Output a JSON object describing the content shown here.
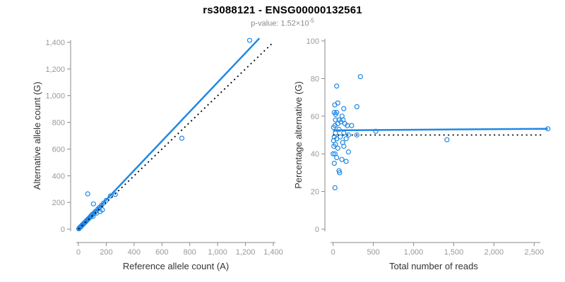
{
  "header": {
    "title": "rs3088121 - ENSG00000132561",
    "subtitle_prefix": "p-value: 1.52×10",
    "subtitle_exponent": "-5"
  },
  "colors": {
    "point": "#1E88E5",
    "fit_line": "#1E88E5",
    "reference_line": "#000000",
    "axis_line": "#888888",
    "tick_label": "#999999",
    "axis_title": "#333333",
    "title": "#000000",
    "subtitle": "#8a8a8a"
  },
  "chart_data": [
    {
      "type": "scatter",
      "name": "allele-count-scatter",
      "xlabel": "Reference allele count (A)",
      "ylabel": "Alternative allele count (G)",
      "xlim": [
        0,
        1400
      ],
      "ylim": [
        0,
        1400
      ],
      "xticks": {
        "values": [
          0,
          200,
          400,
          600,
          800,
          1000,
          1200,
          1400
        ],
        "labels": [
          "0",
          "200",
          "400",
          "600",
          "800",
          "1,000",
          "1,200",
          "1,400"
        ]
      },
      "yticks": {
        "values": [
          0,
          200,
          400,
          600,
          800,
          1000,
          1200,
          1400
        ],
        "labels": [
          "0",
          "200",
          "400",
          "600",
          "800",
          "1,000",
          "1,200",
          "1,400"
        ]
      },
      "points": [
        [
          3,
          3
        ],
        [
          4,
          5
        ],
        [
          6,
          6
        ],
        [
          7,
          8
        ],
        [
          9,
          10
        ],
        [
          10,
          12
        ],
        [
          12,
          13
        ],
        [
          13,
          15
        ],
        [
          15,
          16
        ],
        [
          16,
          18
        ],
        [
          18,
          20
        ],
        [
          20,
          21
        ],
        [
          22,
          24
        ],
        [
          24,
          26
        ],
        [
          26,
          28
        ],
        [
          28,
          31
        ],
        [
          30,
          33
        ],
        [
          32,
          35
        ],
        [
          35,
          38
        ],
        [
          38,
          41
        ],
        [
          40,
          44
        ],
        [
          44,
          48
        ],
        [
          48,
          52
        ],
        [
          52,
          56
        ],
        [
          56,
          60
        ],
        [
          60,
          65
        ],
        [
          65,
          70
        ],
        [
          70,
          76
        ],
        [
          75,
          80
        ],
        [
          80,
          87
        ],
        [
          85,
          90
        ],
        [
          90,
          98
        ],
        [
          95,
          102
        ],
        [
          100,
          110
        ],
        [
          105,
          95
        ],
        [
          110,
          118
        ],
        [
          118,
          126
        ],
        [
          125,
          134
        ],
        [
          130,
          120
        ],
        [
          140,
          150
        ],
        [
          150,
          162
        ],
        [
          156,
          132
        ],
        [
          165,
          178
        ],
        [
          172,
          144
        ],
        [
          180,
          195
        ],
        [
          200,
          215
        ],
        [
          230,
          248
        ],
        [
          265,
          260
        ],
        [
          67,
          264
        ],
        [
          108,
          189
        ],
        [
          743,
          681
        ],
        [
          1230,
          1415
        ]
      ],
      "lines": [
        {
          "name": "regression-line",
          "style": "solid",
          "color": "#1E88E5",
          "x1": 0,
          "y1": 0,
          "x2": 1300,
          "y2": 1430,
          "width": 2.5
        },
        {
          "name": "identity-line",
          "style": "dotted",
          "color": "#000000",
          "x1": 0,
          "y1": 0,
          "x2": 1400,
          "y2": 1400,
          "width": 1.8
        }
      ]
    },
    {
      "type": "scatter",
      "name": "percentage-scatter",
      "xlabel": "Total number of reads",
      "ylabel": "Percentage alternative (G)",
      "xlim": [
        0,
        2500
      ],
      "ylim": [
        0,
        100
      ],
      "xticks": {
        "values": [
          0,
          500,
          1000,
          1500,
          2000,
          2500
        ],
        "labels": [
          "0",
          "500",
          "1,000",
          "1,500",
          "2,000",
          "2,500"
        ]
      },
      "yticks": {
        "values": [
          0,
          20,
          40,
          60,
          80,
          100
        ],
        "labels": [
          "0",
          "20",
          "40",
          "60",
          "80",
          "100"
        ]
      },
      "points": [
        [
          339,
          81
        ],
        [
          44,
          76
        ],
        [
          20,
          66
        ],
        [
          58,
          67
        ],
        [
          295,
          65
        ],
        [
          133,
          64
        ],
        [
          14,
          62
        ],
        [
          44,
          62
        ],
        [
          30,
          61
        ],
        [
          111,
          60
        ],
        [
          29,
          58
        ],
        [
          73,
          58
        ],
        [
          124,
          58
        ],
        [
          97,
          57
        ],
        [
          58,
          56
        ],
        [
          147,
          56
        ],
        [
          23,
          55
        ],
        [
          177,
          55
        ],
        [
          230,
          55
        ],
        [
          5,
          54
        ],
        [
          73,
          53
        ],
        [
          531,
          52
        ],
        [
          29,
          51
        ],
        [
          133,
          51
        ],
        [
          191,
          50
        ],
        [
          295,
          50
        ],
        [
          88,
          49
        ],
        [
          14,
          49
        ],
        [
          162,
          48
        ],
        [
          44,
          48
        ],
        [
          5,
          47
        ],
        [
          118,
          46
        ],
        [
          29,
          45
        ],
        [
          9,
          44
        ],
        [
          58,
          43
        ],
        [
          133,
          44
        ],
        [
          191,
          41
        ],
        [
          0,
          40
        ],
        [
          23,
          40
        ],
        [
          44,
          38
        ],
        [
          162,
          36
        ],
        [
          14,
          35
        ],
        [
          108,
          37
        ],
        [
          73,
          31
        ],
        [
          80,
          30
        ],
        [
          23,
          22
        ],
        [
          1416,
          47.5
        ],
        [
          2670,
          53.3
        ]
      ],
      "lines": [
        {
          "name": "mean-percentage-line",
          "style": "solid",
          "color": "#1E88E5",
          "x1": 0,
          "y1": 52.5,
          "x2": 2670,
          "y2": 53.3,
          "width": 2.5
        },
        {
          "name": "expected-percentage-line",
          "style": "dotted",
          "color": "#000000",
          "x1": 0,
          "y1": 50,
          "x2": 2620,
          "y2": 50,
          "width": 1.8
        }
      ]
    }
  ]
}
